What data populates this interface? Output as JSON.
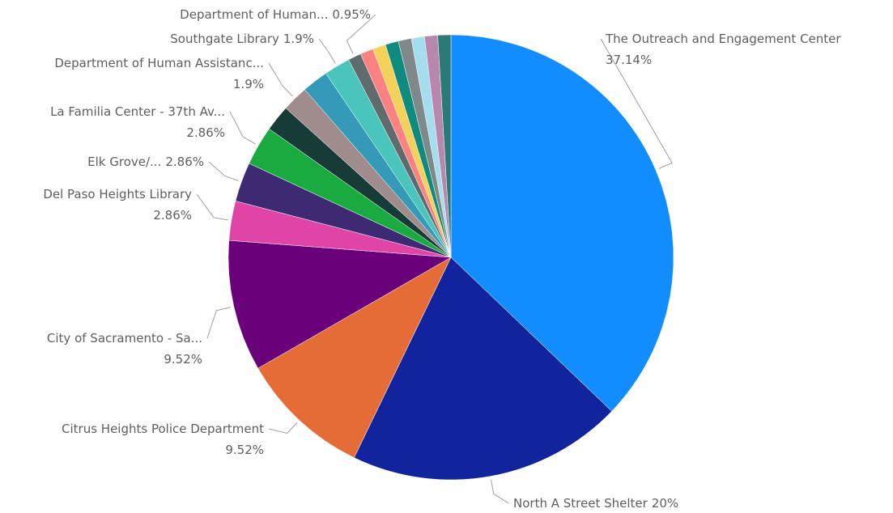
{
  "chart_data": {
    "type": "pie",
    "categories": [
      "The Outreach and Engagement Center",
      "North A Street Shelter",
      "Citrus Heights Police Department",
      "City of Sacramento - Sa...",
      "Del Paso Heights Library",
      "Elk Grove/...",
      "La Familia Center - 37th Av...",
      null,
      "Department of Human Assistanc...",
      null,
      "Southgate Library",
      "Department of Human...",
      null,
      null,
      null,
      null,
      null,
      null,
      null
    ],
    "values": [
      37.14,
      20,
      9.52,
      9.52,
      2.86,
      2.86,
      2.86,
      1.9,
      1.9,
      1.9,
      1.9,
      0.95,
      0.95,
      0.95,
      0.95,
      0.95,
      0.95,
      0.95,
      0.95
    ],
    "value_labels": [
      "37.14%",
      "20%",
      "9.52%",
      "9.52%",
      "2.86%",
      "2.86%",
      "2.86%",
      null,
      "1.9%",
      null,
      "1.9%",
      "0.95%",
      null,
      null,
      null,
      null,
      null,
      null,
      null
    ],
    "colors": [
      "#118DFF",
      "#12239E",
      "#E66C37",
      "#6B007B",
      "#E044A7",
      "#3D2A72",
      "#1AAB40",
      "#173B36",
      "#A08C8C",
      "#3599B8",
      "#4AC5BB",
      "#5F6B6D",
      "#FB8281",
      "#F4D25A",
      "#0E8A7E",
      "#7F898A",
      "#A4DDEE",
      "#B887AD",
      "#2B7A78"
    ]
  }
}
